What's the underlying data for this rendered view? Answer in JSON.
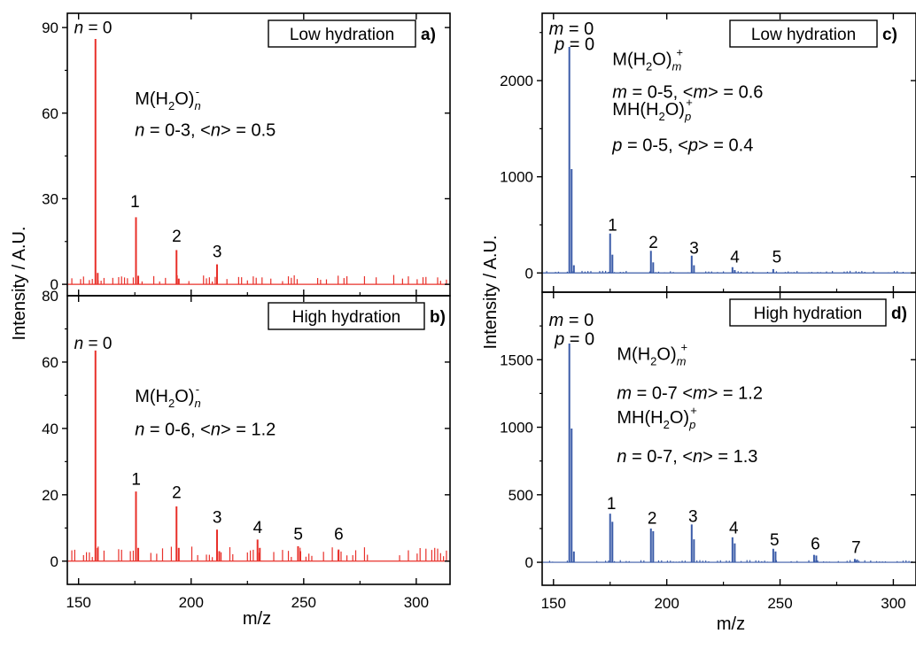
{
  "chart_data": [
    {
      "id": "a",
      "type": "bar",
      "panel_label": "a)",
      "box_label": "Low hydration",
      "ion_sign": "-",
      "color": "#e8302a",
      "xlim": [
        145,
        315
      ],
      "ylim": [
        -4,
        95
      ],
      "yticks": [
        0,
        30,
        60,
        90
      ],
      "top_label": "",
      "peaks": [
        {
          "x": 157.5,
          "y": 86
        },
        {
          "x": 158.5,
          "y": 4
        },
        {
          "x": 175.5,
          "y": 23.5
        },
        {
          "x": 176.5,
          "y": 3
        },
        {
          "x": 193.5,
          "y": 12
        },
        {
          "x": 194.5,
          "y": 2
        },
        {
          "x": 211.5,
          "y": 7
        }
      ],
      "noise_level": 3,
      "peak_labels": [
        {
          "text": "n = 0",
          "x": 148,
          "y": 88
        },
        {
          "text": "1",
          "x": 173,
          "y": 27
        },
        {
          "text": "2",
          "x": 191.5,
          "y": 15
        },
        {
          "text": "3",
          "x": 209.5,
          "y": 9.5
        }
      ],
      "formula": {
        "base": "M(H",
        "sub1": "2",
        "mid": "O)",
        "sub2": "n",
        "sup": "-",
        "x": 175,
        "y": 63
      },
      "stats": {
        "text": "n = 0-3, <n> = 0.5",
        "x": 175,
        "y": 52
      }
    },
    {
      "id": "b",
      "type": "bar",
      "panel_label": "b)",
      "box_label": "High hydration",
      "ion_sign": "-",
      "color": "#e8302a",
      "xlim": [
        145,
        315
      ],
      "ylim": [
        -7,
        80
      ],
      "yticks": [
        0,
        20,
        40,
        60
      ],
      "top_label": "80",
      "peaks": [
        {
          "x": 157.5,
          "y": 63.5
        },
        {
          "x": 158.5,
          "y": 4
        },
        {
          "x": 175.5,
          "y": 21
        },
        {
          "x": 176.5,
          "y": 4
        },
        {
          "x": 193.5,
          "y": 16.5
        },
        {
          "x": 194.5,
          "y": 4
        },
        {
          "x": 211.5,
          "y": 9.5
        },
        {
          "x": 212.5,
          "y": 3
        },
        {
          "x": 229.5,
          "y": 6.5
        },
        {
          "x": 230.5,
          "y": 4
        },
        {
          "x": 247.5,
          "y": 4.5
        },
        {
          "x": 248.5,
          "y": 3
        },
        {
          "x": 265.5,
          "y": 3.5
        }
      ],
      "noise_level": 4,
      "peak_labels": [
        {
          "text": "n = 0",
          "x": 148,
          "y": 64
        },
        {
          "text": "1",
          "x": 173.5,
          "y": 23
        },
        {
          "text": "2",
          "x": 191.5,
          "y": 19
        },
        {
          "text": "3",
          "x": 209.5,
          "y": 11.5
        },
        {
          "text": "4",
          "x": 227.5,
          "y": 8.5
        },
        {
          "text": "5",
          "x": 245.5,
          "y": 6.5
        },
        {
          "text": "6",
          "x": 263.5,
          "y": 6.5
        }
      ],
      "formula": {
        "base": "M(H",
        "sub1": "2",
        "mid": "O)",
        "sub2": "n",
        "sup": "-",
        "x": 175,
        "y": 48
      },
      "stats": {
        "text": "n = 0-6, <n> = 1.2",
        "x": 175,
        "y": 38
      }
    },
    {
      "id": "c",
      "type": "bar",
      "panel_label": "c)",
      "box_label": "Low hydration",
      "ion_sign": "+",
      "color": "#3a5ba8",
      "xlim": [
        145,
        310
      ],
      "ylim": [
        -200,
        2700
      ],
      "yticks": [
        0,
        1000,
        2000
      ],
      "top_label": "",
      "peaks": [
        {
          "x": 157,
          "y": 2350
        },
        {
          "x": 158,
          "y": 1080
        },
        {
          "x": 159,
          "y": 80
        },
        {
          "x": 175,
          "y": 410
        },
        {
          "x": 176,
          "y": 190
        },
        {
          "x": 193,
          "y": 230
        },
        {
          "x": 194,
          "y": 110
        },
        {
          "x": 211,
          "y": 180
        },
        {
          "x": 212,
          "y": 80
        },
        {
          "x": 229,
          "y": 60
        },
        {
          "x": 230,
          "y": 30
        },
        {
          "x": 247,
          "y": 40
        }
      ],
      "noise_level": 20,
      "peak_labels": [
        {
          "text": "1",
          "x": 174,
          "y": 440
        },
        {
          "text": "2",
          "x": 192,
          "y": 260
        },
        {
          "text": "3",
          "x": 210,
          "y": 200
        },
        {
          "text": "4",
          "x": 228,
          "y": 110
        },
        {
          "text": "5",
          "x": 246.5,
          "y": 110
        }
      ],
      "mp_labels": [
        {
          "text": "m = 0",
          "x": 148,
          "y": 2480
        },
        {
          "text": "p = 0",
          "x": 150.5,
          "y": 2320
        }
      ],
      "formula": {
        "base": "M(H",
        "sub1": "2",
        "mid": "O)",
        "sub2": "m",
        "sup": "+",
        "x": 176,
        "y": 2160
      },
      "stats": {
        "text": "m = 0-5, <m> = 0.6",
        "x": 176,
        "y": 1820
      },
      "formula2": {
        "base": "MH(H",
        "sub1": "2",
        "mid": "O)",
        "sub2": "p",
        "sup": "+",
        "x": 176,
        "y": 1640
      },
      "stats2": {
        "text": "p = 0-5, <p> = 0.4",
        "x": 176,
        "y": 1270
      }
    },
    {
      "id": "d",
      "type": "bar",
      "panel_label": "d)",
      "box_label": "High hydration",
      "ion_sign": "+",
      "color": "#3a5ba8",
      "xlim": [
        145,
        310
      ],
      "ylim": [
        -170,
        2000
      ],
      "yticks": [
        0,
        500,
        1000,
        1500
      ],
      "top_label": "",
      "peaks": [
        {
          "x": 157,
          "y": 1620
        },
        {
          "x": 158,
          "y": 990
        },
        {
          "x": 159,
          "y": 80
        },
        {
          "x": 175,
          "y": 360
        },
        {
          "x": 176,
          "y": 300
        },
        {
          "x": 193,
          "y": 250
        },
        {
          "x": 194,
          "y": 230
        },
        {
          "x": 211,
          "y": 280
        },
        {
          "x": 212,
          "y": 170
        },
        {
          "x": 229,
          "y": 185
        },
        {
          "x": 230,
          "y": 140
        },
        {
          "x": 247,
          "y": 100
        },
        {
          "x": 248,
          "y": 80
        },
        {
          "x": 265,
          "y": 55
        },
        {
          "x": 266,
          "y": 50
        },
        {
          "x": 283,
          "y": 25
        },
        {
          "x": 284,
          "y": 20
        }
      ],
      "noise_level": 15,
      "peak_labels": [
        {
          "text": "1",
          "x": 173.5,
          "y": 395
        },
        {
          "text": "2",
          "x": 191.5,
          "y": 285
        },
        {
          "text": "3",
          "x": 209.5,
          "y": 300
        },
        {
          "text": "4",
          "x": 227.5,
          "y": 215
        },
        {
          "text": "5",
          "x": 245.5,
          "y": 125
        },
        {
          "text": "6",
          "x": 263.5,
          "y": 95
        },
        {
          "text": "7",
          "x": 281.5,
          "y": 70
        }
      ],
      "mp_labels": [
        {
          "text": "m = 0",
          "x": 148,
          "y": 1750
        },
        {
          "text": "p = 0",
          "x": 150.5,
          "y": 1610
        }
      ],
      "formula": {
        "base": "M(H",
        "sub1": "2",
        "mid": "O)",
        "sub2": "m",
        "sup": "+",
        "x": 178,
        "y": 1500
      },
      "stats": {
        "text": "m = 0-7 <m> = 1.2",
        "x": 178,
        "y": 1210
      },
      "formula2": {
        "base": "MH(H",
        "sub1": "2",
        "mid": "O)",
        "sub2": "p",
        "sup": "+",
        "x": 178,
        "y": 1030
      },
      "stats2": {
        "text": "n = 0-7, <n> = 1.3",
        "x": 178,
        "y": 740
      }
    }
  ],
  "axes": {
    "left": {
      "ylabel": "Intensity / A.U.",
      "xlabel": "m/z",
      "xticks": [
        150,
        200,
        250,
        300
      ]
    },
    "right": {
      "ylabel": "Intensity / A.U.",
      "xlabel": "m/z",
      "xticks": [
        150,
        200,
        250,
        300
      ]
    }
  }
}
